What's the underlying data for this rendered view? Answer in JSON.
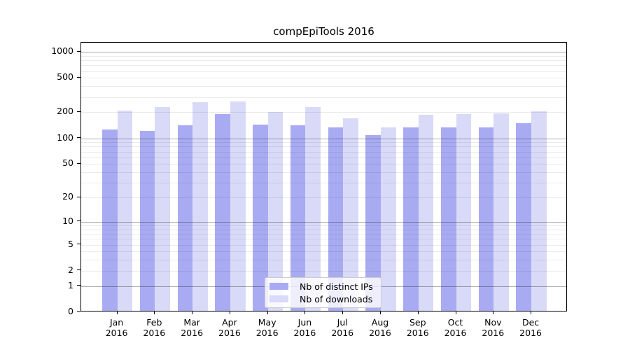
{
  "figure": {
    "title": "compEpiTools 2016",
    "background_color": "#ffffff"
  },
  "chart_data": {
    "type": "bar",
    "title": "compEpiTools 2016",
    "categories": [
      "Jan 2016",
      "Feb 2016",
      "Mar 2016",
      "Apr 2016",
      "May 2016",
      "Jun 2016",
      "Jul 2016",
      "Aug 2016",
      "Sep 2016",
      "Oct 2016",
      "Nov 2016",
      "Dec 2016"
    ],
    "series": [
      {
        "name": "Nb of distinct IPs",
        "color": "#a9abf2",
        "values": [
          122,
          117,
          135,
          183,
          139,
          137,
          128,
          104,
          129,
          130,
          130,
          143
        ]
      },
      {
        "name": "Nb of downloads",
        "color": "#d9daf8",
        "values": [
          200,
          221,
          254,
          258,
          194,
          220,
          165,
          128,
          180,
          184,
          188,
          198
        ]
      }
    ],
    "xlabel": "",
    "ylabel": "",
    "yscale": "log1p",
    "yticks": [
      0,
      1,
      2,
      5,
      10,
      20,
      50,
      100,
      200,
      500,
      1000
    ],
    "ylim": [
      0,
      1260
    ],
    "grid": "horizontal major and minor lines drawn over bars",
    "legend_position": "lower center",
    "axis_color": "#000000"
  }
}
